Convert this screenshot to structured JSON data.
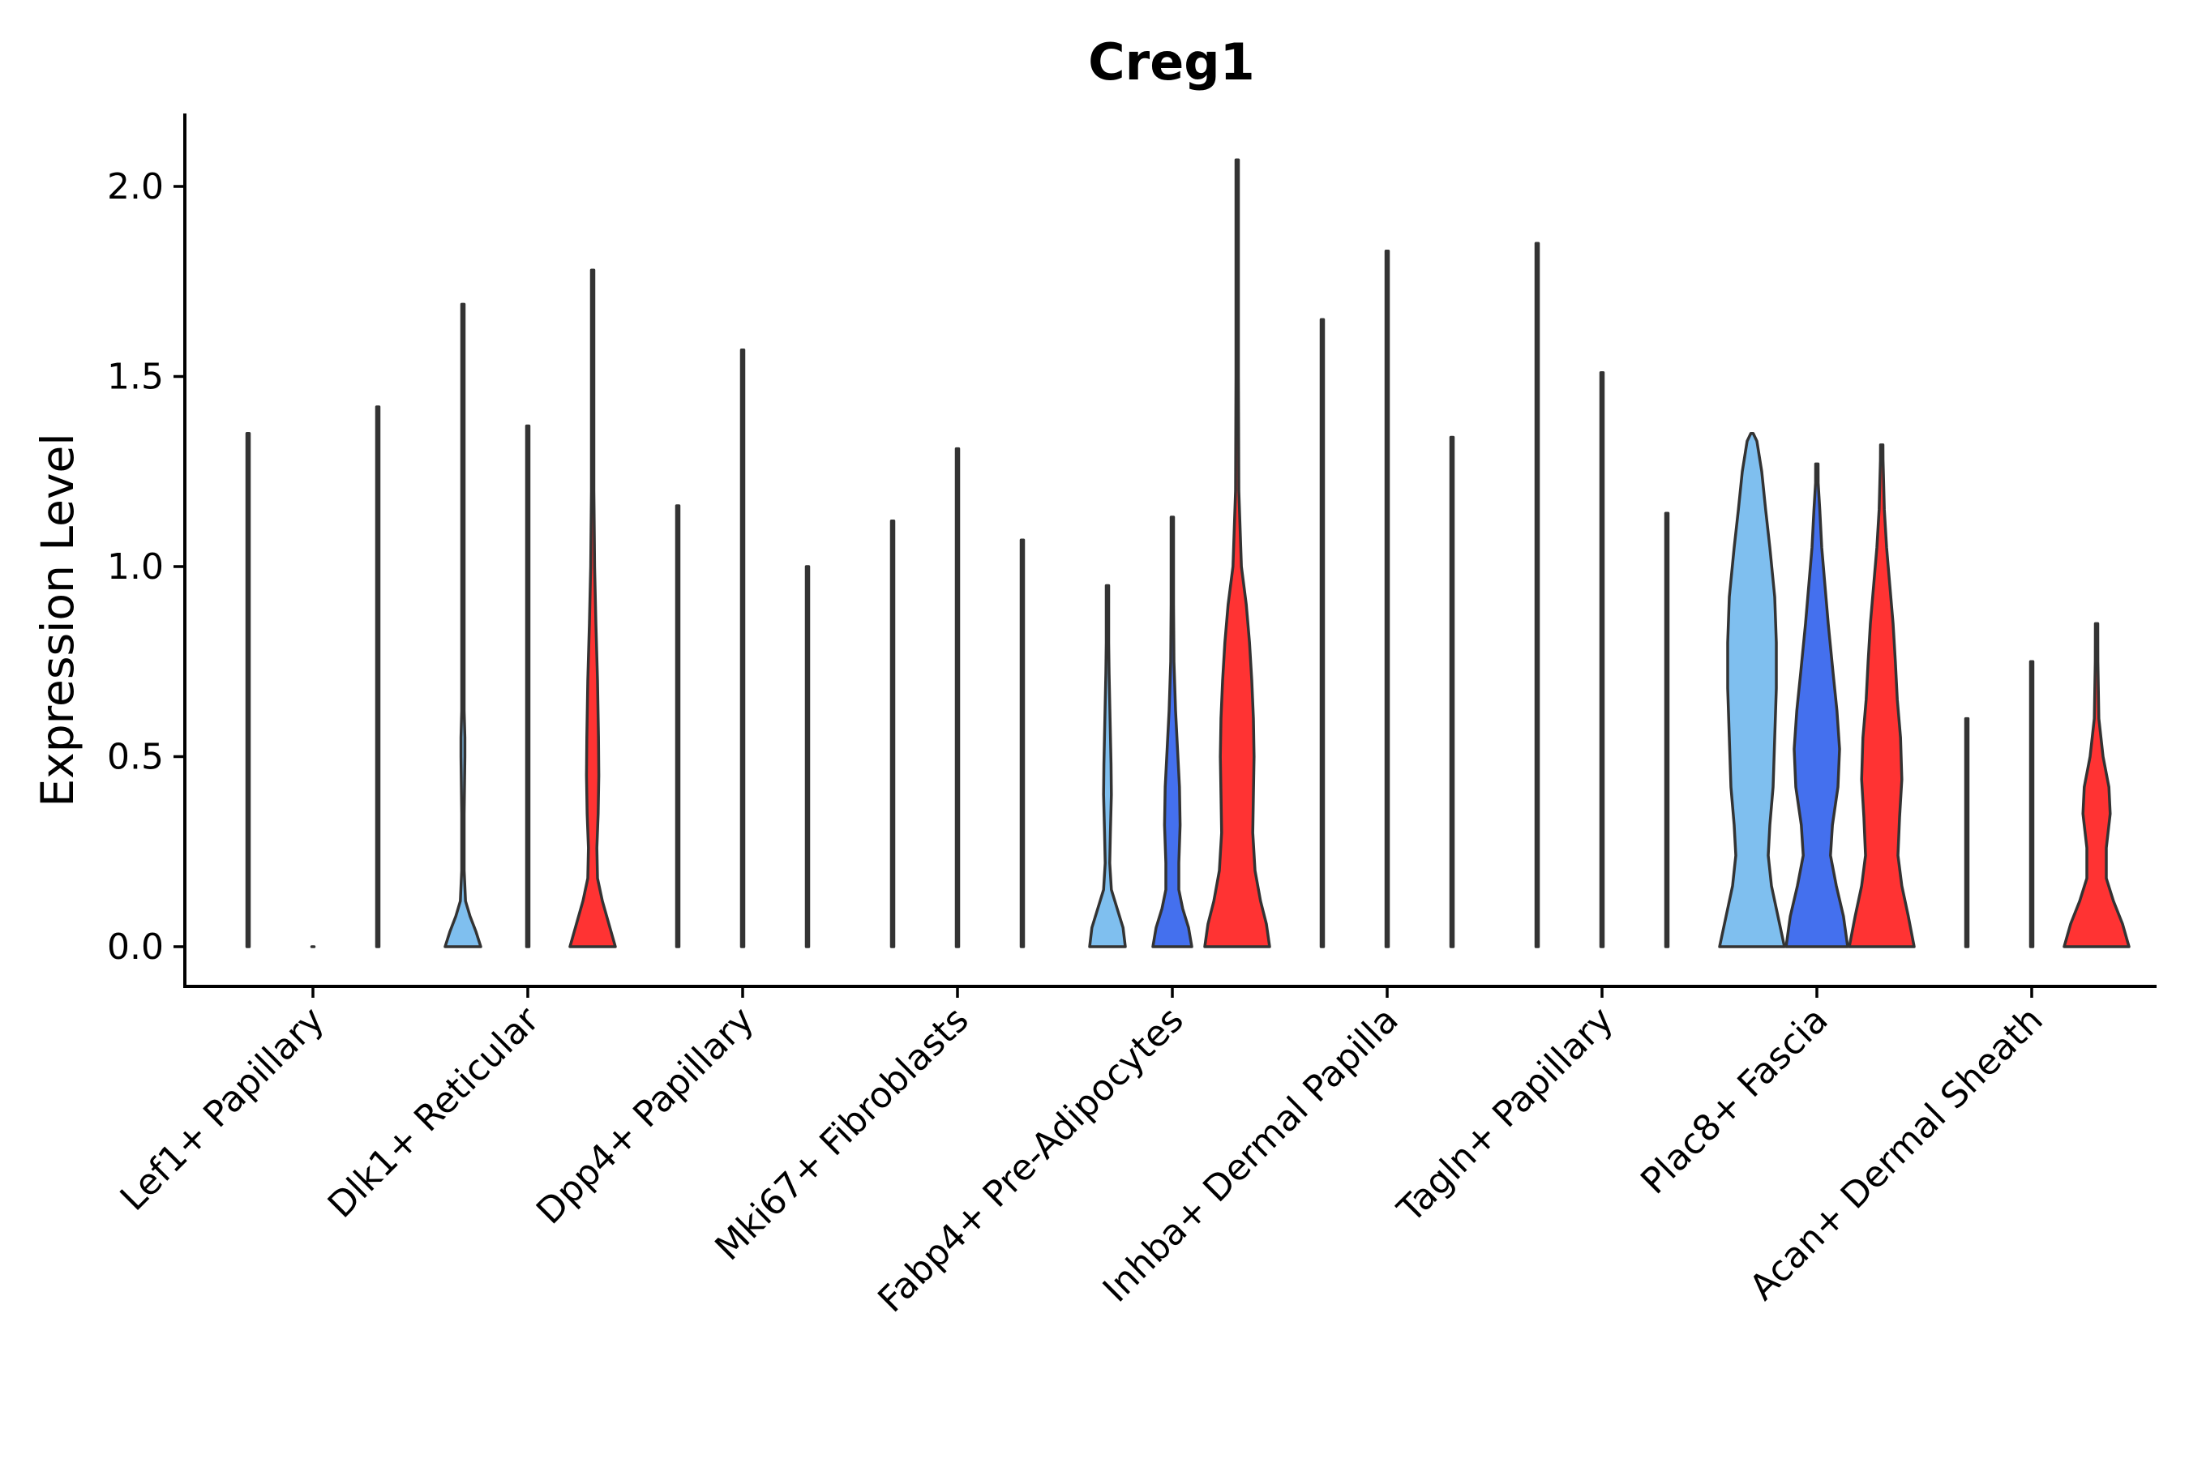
{
  "chart_data": {
    "type": "violin",
    "title": "Creg1",
    "xlabel": "",
    "ylabel": "Expression Level",
    "ylim": [
      -0.1,
      2.2
    ],
    "yticks": [
      0.0,
      0.5,
      1.0,
      1.5,
      2.0
    ],
    "ytick_labels": [
      "0.0",
      "0.5",
      "1.0",
      "1.5",
      "2.0"
    ],
    "grid": false,
    "legend": "none",
    "series_colors": [
      "#7FBFEF",
      "#4470EE",
      "#FF3333"
    ],
    "outline_color": "#333333",
    "categories": [
      "Lef1+ Papillary",
      "Dlk1+ Reticular",
      "Dpp4+ Papillary",
      "Mki67+ Fibroblasts",
      "Fabp4+ Pre-Adipocytes",
      "Inhba+ Dermal Papilla",
      "Tagln+ Papillary",
      "Plac8+ Fascia",
      "Acan+ Dermal Sheath"
    ],
    "violins": [
      [
        {
          "max": 1.35,
          "dens": [
            [
              0,
              0.02
            ]
          ]
        },
        {
          "max": 0.0,
          "dens": [
            [
              0,
              0.02
            ]
          ]
        },
        {
          "max": 1.42,
          "dens": [
            [
              0,
              0.02
            ]
          ]
        }
      ],
      [
        {
          "max": 1.69,
          "dens": [
            [
              0,
              0.55
            ],
            [
              0.04,
              0.4
            ],
            [
              0.08,
              0.22
            ],
            [
              0.12,
              0.08
            ],
            [
              0.2,
              0.03
            ],
            [
              0.35,
              0.03
            ],
            [
              0.5,
              0.06
            ],
            [
              0.55,
              0.06
            ],
            [
              0.62,
              0.03
            ],
            [
              1.0,
              0.01
            ]
          ]
        },
        {
          "max": 1.37,
          "dens": [
            [
              0,
              0.02
            ]
          ]
        },
        {
          "max": 1.78,
          "dens": [
            [
              0,
              0.7
            ],
            [
              0.06,
              0.5
            ],
            [
              0.12,
              0.3
            ],
            [
              0.18,
              0.15
            ],
            [
              0.26,
              0.13
            ],
            [
              0.35,
              0.17
            ],
            [
              0.45,
              0.19
            ],
            [
              0.55,
              0.18
            ],
            [
              0.7,
              0.15
            ],
            [
              0.85,
              0.1
            ],
            [
              1.0,
              0.06
            ],
            [
              1.2,
              0.03
            ],
            [
              1.5,
              0.01
            ]
          ]
        }
      ],
      [
        {
          "max": 1.16,
          "dens": [
            [
              0,
              0.02
            ]
          ]
        },
        {
          "max": 1.57,
          "dens": [
            [
              0,
              0.02
            ]
          ]
        },
        {
          "max": 1.0,
          "dens": [
            [
              0,
              0.02
            ]
          ]
        }
      ],
      [
        {
          "max": 1.12,
          "dens": [
            [
              0,
              0.02
            ]
          ]
        },
        {
          "max": 1.31,
          "dens": [
            [
              0,
              0.02
            ]
          ]
        },
        {
          "max": 1.07,
          "dens": [
            [
              0,
              0.02
            ]
          ]
        }
      ],
      [
        {
          "max": 0.95,
          "dens": [
            [
              0,
              0.55
            ],
            [
              0.05,
              0.48
            ],
            [
              0.1,
              0.3
            ],
            [
              0.15,
              0.12
            ],
            [
              0.22,
              0.07
            ],
            [
              0.3,
              0.09
            ],
            [
              0.4,
              0.12
            ],
            [
              0.48,
              0.11
            ],
            [
              0.6,
              0.08
            ],
            [
              0.72,
              0.05
            ],
            [
              0.8,
              0.02
            ]
          ]
        },
        {
          "max": 1.13,
          "dens": [
            [
              0,
              0.6
            ],
            [
              0.05,
              0.5
            ],
            [
              0.1,
              0.32
            ],
            [
              0.15,
              0.2
            ],
            [
              0.22,
              0.2
            ],
            [
              0.32,
              0.24
            ],
            [
              0.42,
              0.22
            ],
            [
              0.52,
              0.16
            ],
            [
              0.62,
              0.1
            ],
            [
              0.75,
              0.05
            ],
            [
              0.9,
              0.02
            ]
          ]
        },
        {
          "max": 2.07,
          "dens": [
            [
              0,
              1.0
            ],
            [
              0.06,
              0.9
            ],
            [
              0.12,
              0.72
            ],
            [
              0.2,
              0.55
            ],
            [
              0.3,
              0.48
            ],
            [
              0.4,
              0.5
            ],
            [
              0.5,
              0.52
            ],
            [
              0.6,
              0.5
            ],
            [
              0.7,
              0.45
            ],
            [
              0.8,
              0.38
            ],
            [
              0.9,
              0.28
            ],
            [
              1.0,
              0.13
            ],
            [
              1.2,
              0.05
            ],
            [
              1.5,
              0.02
            ],
            [
              1.8,
              0.01
            ]
          ]
        }
      ],
      [
        {
          "max": 1.65,
          "dens": [
            [
              0,
              0.02
            ]
          ]
        },
        {
          "max": 1.83,
          "dens": [
            [
              0,
              0.02
            ]
          ]
        },
        {
          "max": 1.34,
          "dens": [
            [
              0,
              0.02
            ]
          ]
        }
      ],
      [
        {
          "max": 1.85,
          "dens": [
            [
              0,
              0.02
            ]
          ]
        },
        {
          "max": 1.51,
          "dens": [
            [
              0,
              0.02
            ]
          ]
        },
        {
          "max": 1.14,
          "dens": [
            [
              0,
              0.02
            ]
          ]
        }
      ],
      [
        {
          "max": 1.35,
          "dens": [
            [
              0,
              1.0
            ],
            [
              0.08,
              0.8
            ],
            [
              0.16,
              0.6
            ],
            [
              0.24,
              0.5
            ],
            [
              0.32,
              0.55
            ],
            [
              0.42,
              0.65
            ],
            [
              0.55,
              0.7
            ],
            [
              0.68,
              0.75
            ],
            [
              0.8,
              0.75
            ],
            [
              0.92,
              0.7
            ],
            [
              1.05,
              0.55
            ],
            [
              1.15,
              0.42
            ],
            [
              1.25,
              0.3
            ],
            [
              1.33,
              0.15
            ]
          ]
        },
        {
          "max": 1.27,
          "dens": [
            [
              0,
              0.95
            ],
            [
              0.08,
              0.82
            ],
            [
              0.16,
              0.6
            ],
            [
              0.24,
              0.42
            ],
            [
              0.32,
              0.48
            ],
            [
              0.42,
              0.65
            ],
            [
              0.52,
              0.7
            ],
            [
              0.62,
              0.62
            ],
            [
              0.72,
              0.5
            ],
            [
              0.85,
              0.35
            ],
            [
              0.95,
              0.25
            ],
            [
              1.05,
              0.15
            ],
            [
              1.15,
              0.09
            ],
            [
              1.22,
              0.04
            ]
          ]
        },
        {
          "max": 1.32,
          "dens": [
            [
              0,
              1.0
            ],
            [
              0.08,
              0.82
            ],
            [
              0.16,
              0.62
            ],
            [
              0.24,
              0.5
            ],
            [
              0.34,
              0.55
            ],
            [
              0.44,
              0.62
            ],
            [
              0.55,
              0.58
            ],
            [
              0.65,
              0.48
            ],
            [
              0.75,
              0.42
            ],
            [
              0.85,
              0.35
            ],
            [
              0.95,
              0.25
            ],
            [
              1.05,
              0.15
            ],
            [
              1.15,
              0.08
            ],
            [
              1.28,
              0.04
            ]
          ]
        }
      ],
      [
        {
          "max": 0.6,
          "dens": [
            [
              0,
              0.02
            ]
          ]
        },
        {
          "max": 0.75,
          "dens": [
            [
              0,
              0.02
            ]
          ]
        },
        {
          "max": 0.85,
          "dens": [
            [
              0,
              1.0
            ],
            [
              0.06,
              0.8
            ],
            [
              0.12,
              0.52
            ],
            [
              0.18,
              0.3
            ],
            [
              0.26,
              0.3
            ],
            [
              0.35,
              0.42
            ],
            [
              0.42,
              0.38
            ],
            [
              0.5,
              0.2
            ],
            [
              0.6,
              0.07
            ],
            [
              0.75,
              0.04
            ],
            [
              0.84,
              0.03
            ]
          ]
        }
      ]
    ]
  }
}
